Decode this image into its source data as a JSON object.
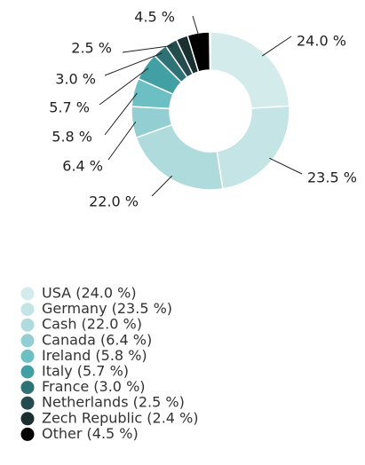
{
  "chart_data": {
    "type": "donut",
    "labels": [
      "USA (24.0 %)",
      "Germany (23.5 %)",
      "Cash (22.0 %)",
      "Canada (6.4 %)",
      "Ireland (5.8 %)",
      "Italy (5.7 %)",
      "France (3.0 %)",
      "Netherlands (2.5 %)",
      "Zech Republic (2.4 %)",
      "Other (4.5 %)"
    ],
    "values": [
      24.0,
      23.5,
      22.0,
      6.4,
      5.8,
      5.7,
      3.0,
      2.5,
      2.4,
      4.5
    ],
    "value_labels": [
      "24.0 %",
      "23.5 %",
      "22.0 %",
      "6.4 %",
      "5.8 %",
      "5.7 %",
      "3.0 %",
      "2.5 %",
      null,
      "4.5 %"
    ],
    "colors": [
      "#d4ebec",
      "#c4e4e5",
      "#b0dbdd",
      "#93cfd2",
      "#6cbfc3",
      "#42a0a5",
      "#2f7276",
      "#244c4f",
      "#19302f",
      "#000000"
    ]
  }
}
